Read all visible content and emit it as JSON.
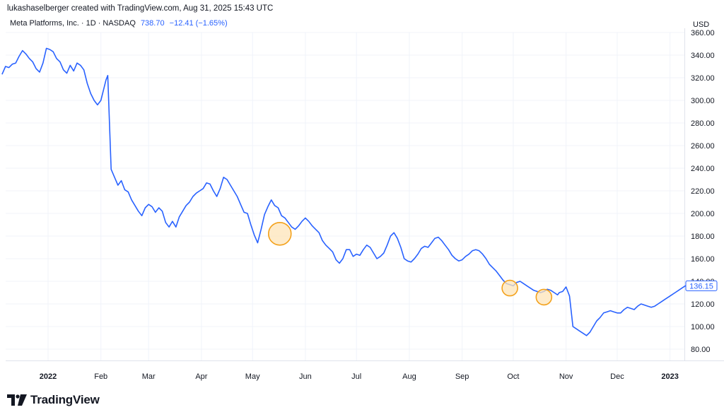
{
  "caption": "lukashaselberger created with TradingView.com, Aug 31, 2025 15:43 UTC",
  "legend": {
    "symbol": "Meta Platforms, Inc. · 1D · NASDAQ",
    "last_price": "738.70",
    "change": "−12.41 (−1.65%)"
  },
  "currency": "USD",
  "brand": "TradingView",
  "colors": {
    "line": "#2962ff",
    "highlight_fill": "#fde4b8",
    "highlight_stroke": "#f3a11b",
    "grid": "#f0f3fa"
  },
  "chart_data": {
    "type": "line",
    "title": "Meta Platforms, Inc. · 1D · NASDAQ",
    "ylabel": "USD",
    "ylim": [
      75,
      362
    ],
    "yticks": [
      80,
      100,
      120,
      140,
      160,
      180,
      200,
      220,
      240,
      260,
      280,
      300,
      320,
      340,
      360
    ],
    "ytick_labels": [
      "80.00",
      "100.00",
      "120.00",
      "140.00",
      "160.00",
      "180.00",
      "200.00",
      "220.00",
      "240.00",
      "260.00",
      "280.00",
      "300.00",
      "320.00",
      "340.00",
      "360.00"
    ],
    "xticks": [
      {
        "label": "2022",
        "day": 0,
        "bold": true
      },
      {
        "label": "Feb",
        "day": 31
      },
      {
        "label": "Mar",
        "day": 59
      },
      {
        "label": "Apr",
        "day": 90
      },
      {
        "label": "May",
        "day": 120
      },
      {
        "label": "Jun",
        "day": 151
      },
      {
        "label": "Jul",
        "day": 181
      },
      {
        "label": "Aug",
        "day": 212
      },
      {
        "label": "Sep",
        "day": 243
      },
      {
        "label": "Oct",
        "day": 273
      },
      {
        "label": "Nov",
        "day": 304
      },
      {
        "label": "Dec",
        "day": 334
      },
      {
        "label": "2023",
        "day": 365,
        "bold": true
      }
    ],
    "x_unit": "days since 2022-01-01",
    "xlim": [
      -27,
      384
    ],
    "series": [
      {
        "name": "META",
        "x": [
          -27,
          -25,
          -23,
          -21,
          -19,
          -17,
          -15,
          -13,
          -11,
          -9,
          -7,
          -5,
          -3,
          -1,
          1,
          3,
          5,
          7,
          9,
          11,
          13,
          15,
          17,
          19,
          21,
          23,
          25,
          27,
          29,
          31,
          33,
          34,
          35,
          37,
          39,
          41,
          43,
          45,
          47,
          49,
          51,
          53,
          55,
          57,
          59,
          61,
          63,
          65,
          67,
          69,
          71,
          73,
          75,
          77,
          79,
          81,
          83,
          85,
          87,
          89,
          91,
          93,
          95,
          97,
          99,
          101,
          103,
          105,
          107,
          109,
          111,
          113,
          115,
          117,
          119,
          121,
          123,
          125,
          127,
          129,
          131,
          133,
          135,
          137,
          139,
          141,
          143,
          145,
          147,
          149,
          151,
          153,
          155,
          157,
          159,
          161,
          163,
          165,
          167,
          169,
          171,
          173,
          175,
          177,
          179,
          181,
          183,
          185,
          187,
          189,
          191,
          193,
          195,
          197,
          199,
          201,
          203,
          205,
          207,
          209,
          211,
          213,
          215,
          217,
          219,
          221,
          223,
          225,
          227,
          229,
          231,
          233,
          235,
          237,
          239,
          241,
          243,
          245,
          247,
          249,
          251,
          253,
          255,
          257,
          259,
          261,
          263,
          265,
          267,
          269,
          271,
          273,
          275,
          277,
          279,
          281,
          283,
          285,
          287,
          289,
          291,
          293,
          295,
          297,
          299,
          300,
          302,
          304,
          306,
          308,
          310,
          312,
          314,
          316,
          318,
          320,
          322,
          324,
          326,
          328,
          330,
          332,
          334,
          336,
          338,
          340,
          342,
          344,
          346,
          348,
          350,
          352,
          354,
          356,
          358,
          360,
          362,
          364,
          366,
          368,
          370,
          372,
          374,
          376,
          378,
          380,
          382
        ],
        "values": [
          323,
          330,
          329,
          332,
          333,
          339,
          344,
          341,
          337,
          334,
          328,
          325,
          333,
          346,
          345,
          343,
          337,
          334,
          327,
          324,
          331,
          326,
          333,
          331,
          327,
          315,
          306,
          300,
          296,
          300,
          312,
          318,
          322,
          239,
          232,
          225,
          229,
          221,
          219,
          212,
          207,
          202,
          198,
          205,
          208,
          206,
          201,
          205,
          202,
          192,
          188,
          193,
          188,
          197,
          202,
          207,
          210,
          215,
          218,
          220,
          222,
          227,
          226,
          220,
          215,
          222,
          232,
          230,
          225,
          220,
          215,
          208,
          201,
          200,
          190,
          181,
          174,
          186,
          199,
          206,
          212,
          207,
          205,
          198,
          196,
          192,
          188,
          186,
          189,
          193,
          196,
          193,
          189,
          186,
          183,
          176,
          172,
          169,
          166,
          159,
          156,
          160,
          168,
          168,
          162,
          164,
          163,
          168,
          172,
          170,
          165,
          160,
          162,
          165,
          172,
          180,
          183,
          178,
          170,
          160,
          158,
          157,
          160,
          164,
          169,
          171,
          170,
          174,
          178,
          179,
          176,
          172,
          168,
          163,
          160,
          158,
          159,
          162,
          164,
          167,
          168,
          167,
          164,
          160,
          155,
          152,
          149,
          145,
          141,
          138,
          137,
          136,
          139,
          140,
          138,
          136,
          134,
          132,
          131,
          130,
          131,
          133,
          132,
          130,
          128,
          130,
          131,
          135,
          127,
          100,
          98,
          96,
          94,
          92,
          95,
          100,
          105,
          108,
          112,
          113,
          114,
          113,
          112,
          112,
          115,
          117,
          116,
          115,
          118,
          120,
          119,
          118,
          117,
          118,
          120,
          122,
          124,
          126,
          128,
          130,
          132,
          134,
          136,
          136,
          134,
          135,
          136
        ]
      }
    ],
    "highlights": [
      {
        "x": 136,
        "y": 182
      },
      {
        "x": 271,
        "y": 134
      },
      {
        "x": 291,
        "y": 126
      }
    ],
    "last_value_label": "136.15"
  }
}
